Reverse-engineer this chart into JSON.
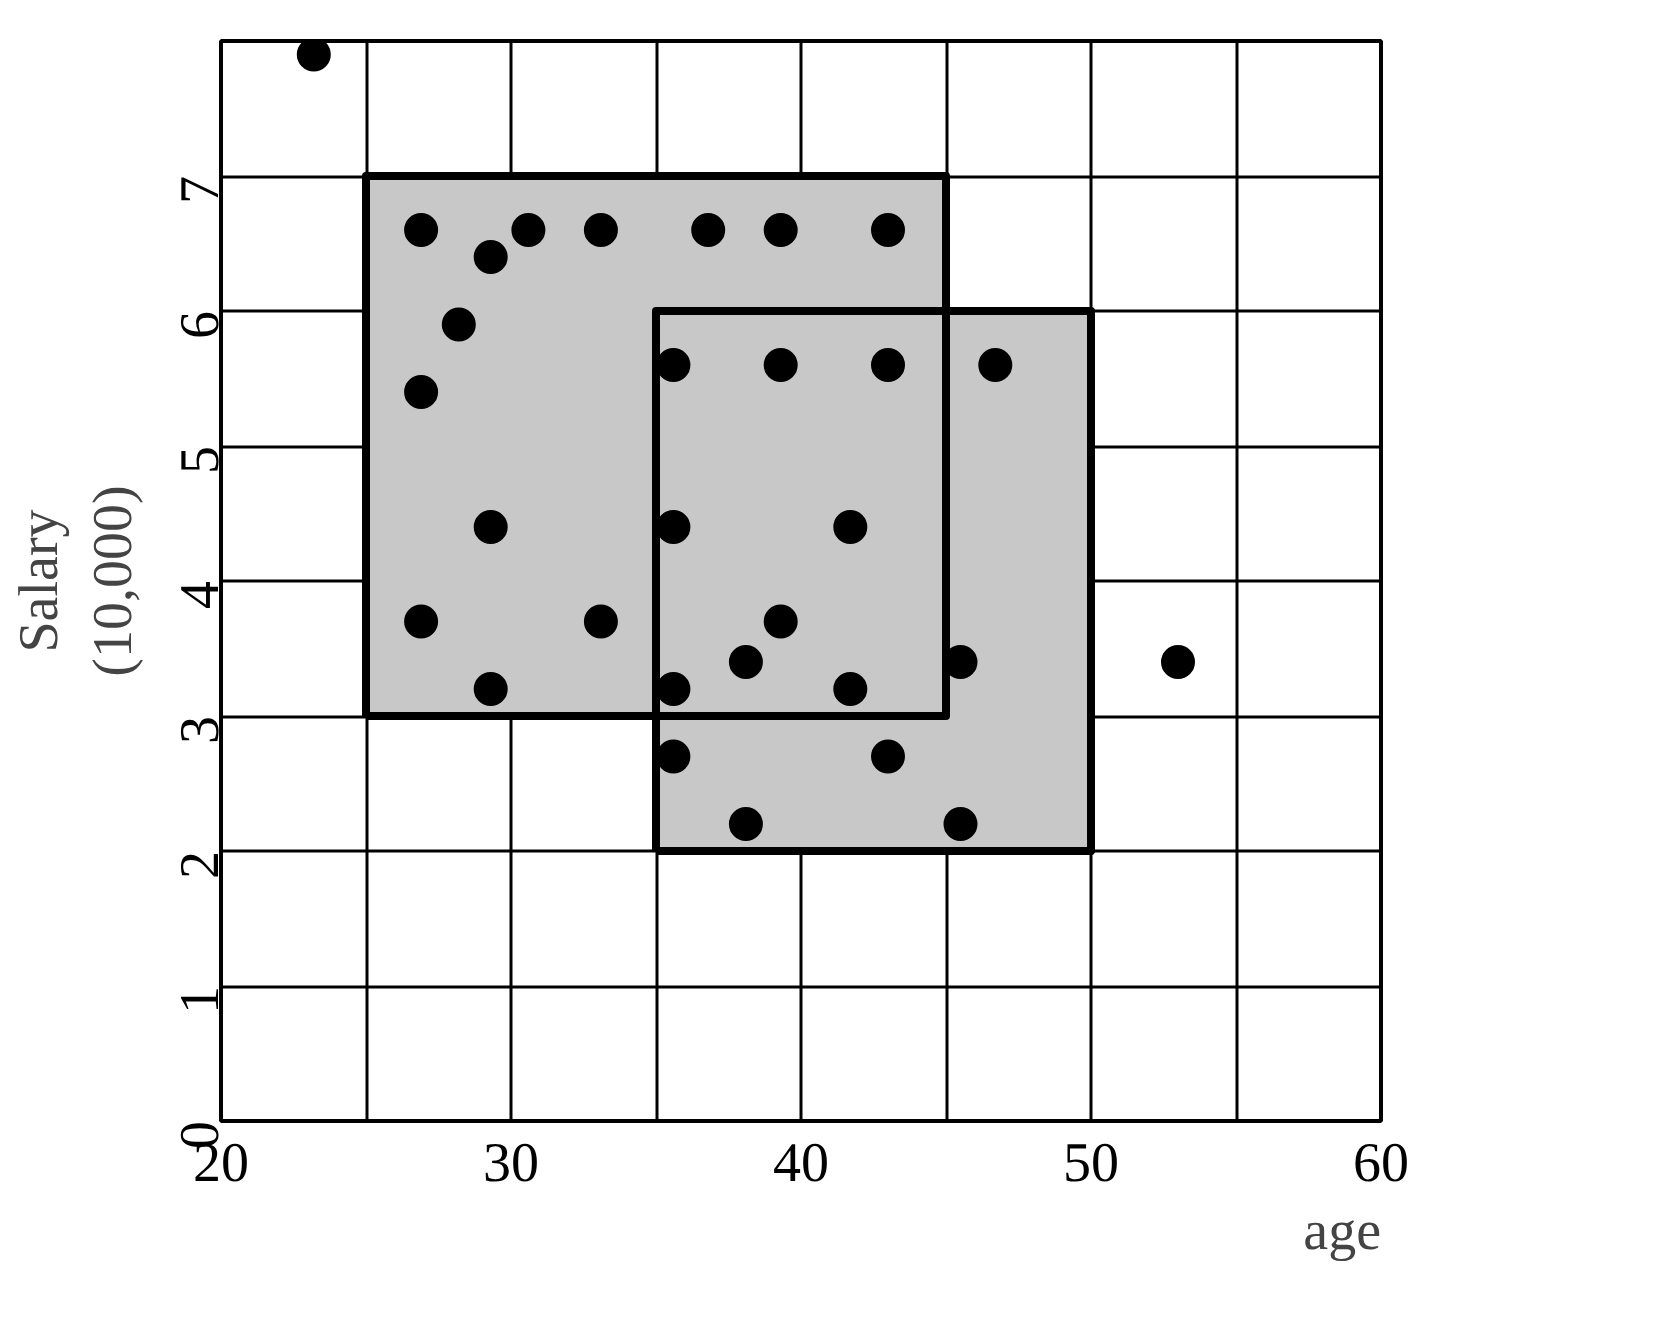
{
  "chart_data": {
    "type": "scatter",
    "xlabel": "age",
    "ylabel": "Salary\n(10,000)",
    "xlim": [
      20,
      60
    ],
    "ylim": [
      0,
      8
    ],
    "xticks": [
      20,
      {
        "value": 25,
        "label": null
      },
      30,
      {
        "value": 35,
        "label": null
      },
      40,
      {
        "value": 45,
        "label": null
      },
      50,
      {
        "value": 55,
        "label": null
      },
      60
    ],
    "yticks": [
      0,
      1,
      2,
      3,
      4,
      5,
      6,
      7,
      {
        "value": 8,
        "label": null
      }
    ],
    "grid": true,
    "series": [
      {
        "type": "area",
        "x": [
          25,
          25,
          45,
          45,
          25
        ],
        "values": [
          3,
          7,
          7,
          3,
          3
        ],
        "color": "#c8c8c8"
      },
      {
        "type": "area",
        "x": [
          35,
          35,
          50,
          50,
          35
        ],
        "values": [
          2,
          6,
          6,
          2,
          2
        ],
        "color": "#c8c8c8"
      },
      {
        "color": "#000000",
        "marker": "circle",
        "x": [
          23.2,
          26.9,
          29.3,
          30.6,
          33.1,
          36.8,
          39.3,
          43.0,
          28.2,
          26.9,
          35.6,
          39.3,
          43.0,
          46.7,
          29.3,
          35.6,
          41.7,
          26.9,
          33.1,
          39.3,
          38.1,
          45.5,
          53.0,
          29.3,
          35.6,
          41.7,
          35.6,
          43.0,
          38.1,
          45.5
        ],
        "values": [
          7.9,
          6.6,
          6.4,
          6.6,
          6.6,
          6.6,
          6.6,
          6.6,
          5.9,
          5.4,
          5.6,
          5.6,
          5.6,
          5.6,
          4.4,
          4.4,
          4.4,
          3.7,
          3.7,
          3.7,
          3.4,
          3.4,
          3.4,
          3.2,
          3.2,
          3.2,
          2.7,
          2.7,
          2.2,
          2.2
        ]
      }
    ]
  }
}
